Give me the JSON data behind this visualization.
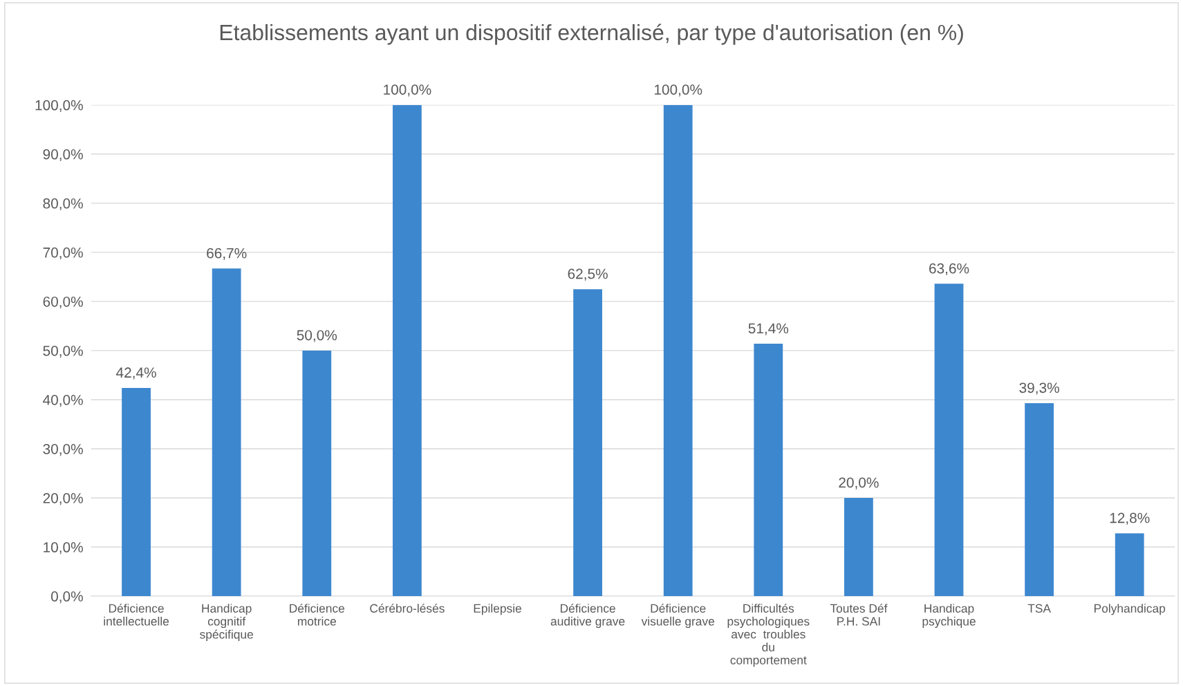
{
  "chart_data": {
    "type": "bar",
    "title": "Etablissements ayant un dispositif externalisé, par type d'autorisation (en %)",
    "categories": [
      "Déficience\nintellectuelle",
      "Handicap\ncognitif\nspécifique",
      "Déficience\nmotrice",
      "Cérébro-lésés",
      "Epilepsie",
      "Déficience\nauditive grave",
      "Déficience\nvisuelle grave",
      "Difficultés\npsychologiques\navec  troubles\ndu\ncomportement",
      "Toutes Déf\nP.H. SAI",
      "Handicap\npsychique",
      "TSA",
      "Polyhandicap"
    ],
    "values": [
      42.4,
      66.7,
      50.0,
      100.0,
      null,
      62.5,
      100.0,
      51.4,
      20.0,
      63.6,
      39.3,
      12.8
    ],
    "value_labels": [
      "42,4%",
      "66,7%",
      "50,0%",
      "100,0%",
      null,
      "62,5%",
      "100,0%",
      "51,4%",
      "20,0%",
      "63,6%",
      "39,3%",
      "12,8%"
    ],
    "color": "#3d87cf",
    "ylim": [
      0,
      100
    ],
    "yticks": [
      {
        "value": 0,
        "label": "0,0%"
      },
      {
        "value": 10,
        "label": "10,0%"
      },
      {
        "value": 20,
        "label": "20,0%"
      },
      {
        "value": 30,
        "label": "30,0%"
      },
      {
        "value": 40,
        "label": "40,0%"
      },
      {
        "value": 50,
        "label": "50,0%"
      },
      {
        "value": 60,
        "label": "60,0%"
      },
      {
        "value": 70,
        "label": "70,0%"
      },
      {
        "value": 80,
        "label": "80,0%"
      },
      {
        "value": 90,
        "label": "90,0%"
      },
      {
        "value": 100,
        "label": "100,0%"
      }
    ],
    "grid": "y",
    "legend": false
  }
}
